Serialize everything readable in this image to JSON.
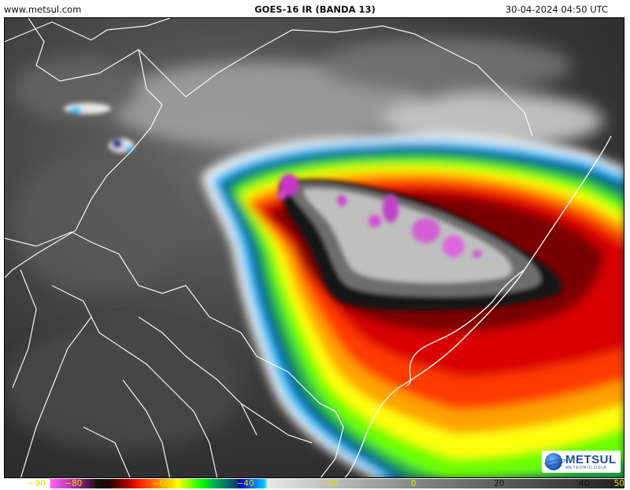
{
  "header": {
    "site": "www.metsul.com",
    "title": "GOES-16 IR (BANDA 13)",
    "datetime": "30-04-2024 04:50 UTC"
  },
  "logo": {
    "brand": "METSUL",
    "subtitle": "METEOROLOGIA"
  },
  "colorbar": {
    "ticks": [
      {
        "label": "−90",
        "color": "#e8e000"
      },
      {
        "label": "−80",
        "color": "#e8e000"
      },
      {
        "label": "−60",
        "color": "#e8e000"
      },
      {
        "label": "−40",
        "color": "#e8e000"
      },
      {
        "label": "−20",
        "color": "#e8e000"
      },
      {
        "label": "0",
        "color": "#e8e000"
      },
      {
        "label": "20",
        "color": "#111111"
      },
      {
        "label": "40",
        "color": "#111111"
      },
      {
        "label": "50",
        "color": "#e8e000"
      }
    ]
  }
}
